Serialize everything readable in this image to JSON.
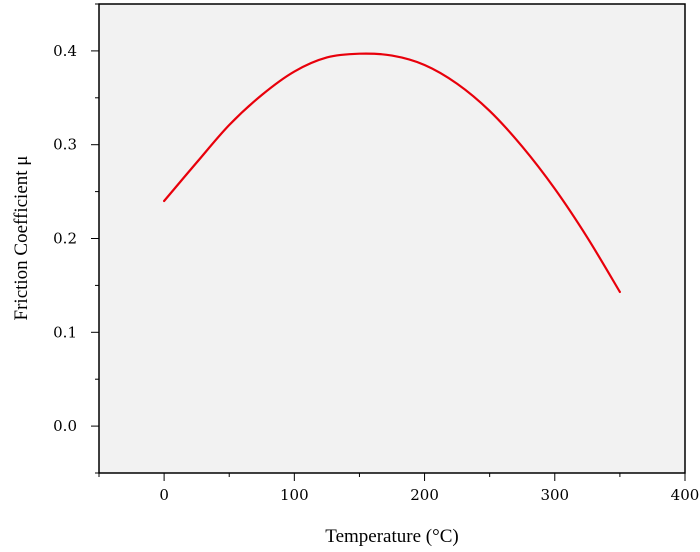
{
  "chart_data": {
    "type": "line",
    "title": "",
    "xlabel": "Temperature (°C)",
    "ylabel": "Friction Coefficient μ",
    "xlim": [
      -50,
      400
    ],
    "ylim": [
      -0.05,
      0.45
    ],
    "x_ticks": [
      0,
      100,
      200,
      300,
      400
    ],
    "x_tick_labels": [
      "0",
      "100",
      "200",
      "300",
      "400"
    ],
    "y_ticks": [
      0.0,
      0.1,
      0.2,
      0.3,
      0.4
    ],
    "y_tick_labels": [
      "0.0",
      "0.1",
      "0.2",
      "0.3",
      "0.4"
    ],
    "x_minor_step": 50,
    "y_minor_step": 0.05,
    "grid": false,
    "series": [
      {
        "color": "#e8000b",
        "x": [
          0,
          25,
          50,
          75,
          100,
          125,
          150,
          175,
          200,
          225,
          250,
          275,
          300,
          325,
          350
        ],
        "y": [
          0.24,
          0.281,
          0.321,
          0.353,
          0.378,
          0.393,
          0.397,
          0.395,
          0.385,
          0.365,
          0.336,
          0.298,
          0.253,
          0.201,
          0.143
        ]
      }
    ]
  }
}
